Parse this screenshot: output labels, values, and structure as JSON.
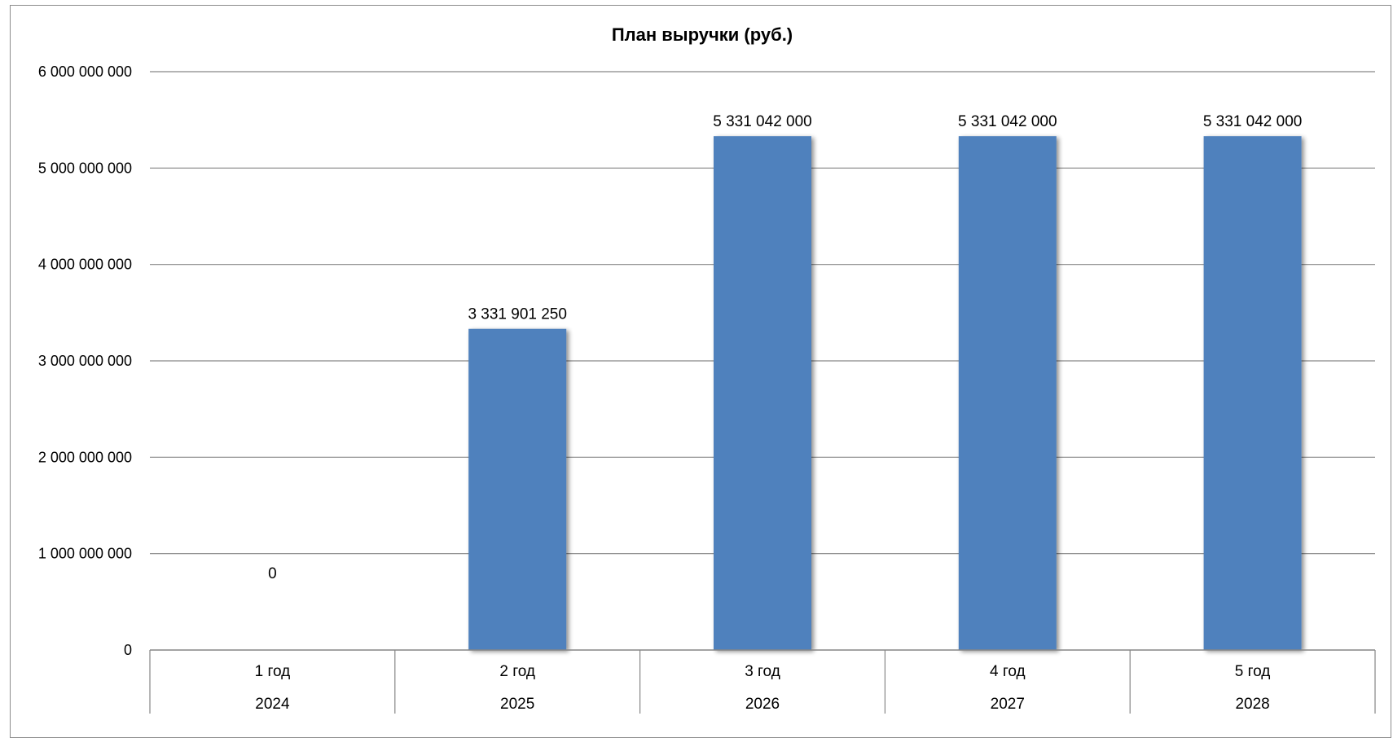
{
  "chart_data": {
    "type": "bar",
    "title": "План выручки (руб.)",
    "xlabel": "",
    "ylabel": "",
    "categories": [
      {
        "label": "1 год",
        "year": "2024"
      },
      {
        "label": "2 год",
        "year": "2025"
      },
      {
        "label": "3 год",
        "year": "2026"
      },
      {
        "label": "4 год",
        "year": "2027"
      },
      {
        "label": "5 год",
        "year": "2028"
      }
    ],
    "values": [
      0,
      3331901250,
      5331042000,
      5331042000,
      5331042000
    ],
    "data_labels": [
      "0",
      "3 331 901 250",
      "5 331 042 000",
      "5 331 042 000",
      "5 331 042 000"
    ],
    "ylim": [
      0,
      6000000000
    ],
    "yticks": [
      0,
      1000000000,
      2000000000,
      3000000000,
      4000000000,
      5000000000,
      6000000000
    ],
    "ytick_labels": [
      "0",
      "1 000 000 000",
      "2 000 000 000",
      "3 000 000 000",
      "4 000 000 000",
      "5 000 000 000",
      "6 000 000 000"
    ],
    "grid": true,
    "legend": "none",
    "bar_color": "#4f81bd",
    "grid_color": "#868686"
  }
}
